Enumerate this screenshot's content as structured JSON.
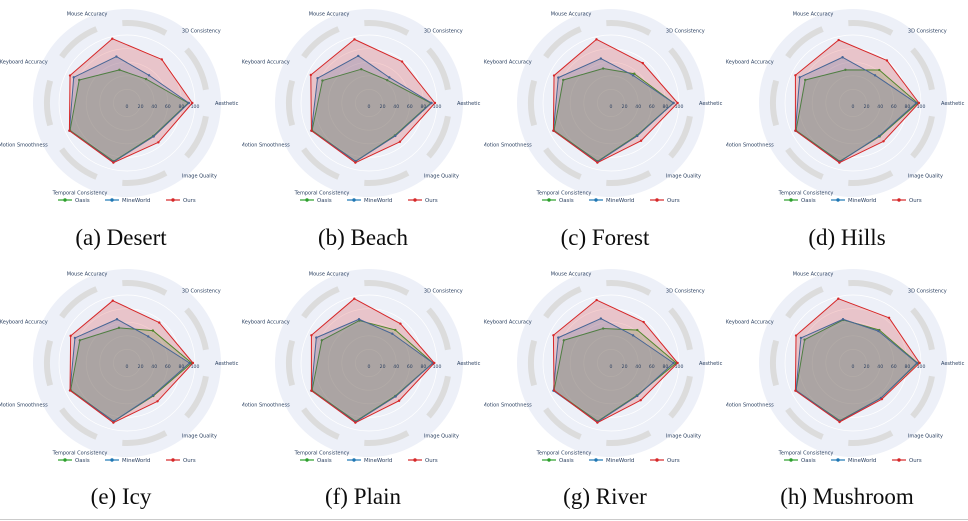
{
  "palette": {
    "background_circle": "#edf0f8",
    "grid_circle": "#ffffff",
    "ring": "#dcdcdc",
    "label_color": "#2a3f5f",
    "oasis_green": "#2ca02c",
    "mineworld_blue": "#1f77b4",
    "ours_red": "#d62728"
  },
  "legend": {
    "items": [
      {
        "label": "Oasis",
        "color": "#2ca02c"
      },
      {
        "label": "MineWorld",
        "color": "#1f77b4"
      },
      {
        "label": "Ours",
        "color": "#d62728"
      }
    ],
    "position": "bottom"
  },
  "chart_data": [
    {
      "type": "radar",
      "caption": "(a) Desert",
      "scene": "Desert",
      "categories": [
        "Mouse Accuracy",
        "3D Consistency",
        "Aesthetic",
        "Image Quality",
        "Temporal Consistency",
        "Motion Smoothness",
        "Keyboard Accuracy"
      ],
      "ticks": [
        0,
        20,
        40,
        60,
        80,
        100
      ],
      "rlim": [
        0,
        100
      ],
      "grid": true,
      "legend_position": "bottom",
      "series": [
        {
          "name": "Oasis",
          "color": "#2ca02c",
          "values": [
            50,
            45,
            90,
            62,
            88,
            93,
            78
          ]
        },
        {
          "name": "MineWorld",
          "color": "#1f77b4",
          "values": [
            70,
            52,
            91,
            63,
            89,
            94,
            87
          ]
        },
        {
          "name": "Ours",
          "color": "#d62728",
          "values": [
            97,
            82,
            96,
            74,
            90,
            94,
            93
          ]
        }
      ]
    },
    {
      "type": "radar",
      "caption": "(b) Beach",
      "scene": "Beach",
      "categories": [
        "Mouse Accuracy",
        "3D Consistency",
        "Aesthetic",
        "Image Quality",
        "Temporal Consistency",
        "Motion Smoothness",
        "Keyboard Accuracy"
      ],
      "ticks": [
        0,
        20,
        40,
        60,
        80,
        100
      ],
      "rlim": [
        0,
        100
      ],
      "grid": true,
      "legend_position": "bottom",
      "series": [
        {
          "name": "Oasis",
          "color": "#2ca02c",
          "values": [
            51,
            43,
            91,
            61,
            88,
            93,
            76
          ]
        },
        {
          "name": "MineWorld",
          "color": "#1f77b4",
          "values": [
            71,
            48,
            92,
            62,
            88,
            94,
            84
          ]
        },
        {
          "name": "Ours",
          "color": "#d62728",
          "values": [
            96,
            78,
            97,
            73,
            90,
            94,
            95
          ]
        }
      ]
    },
    {
      "type": "radar",
      "caption": "(c) Forest",
      "scene": "Forest",
      "categories": [
        "Mouse Accuracy",
        "3D Consistency",
        "Aesthetic",
        "Image Quality",
        "Temporal Consistency",
        "Motion Smoothness",
        "Keyboard Accuracy"
      ],
      "ticks": [
        0,
        20,
        40,
        60,
        80,
        100
      ],
      "rlim": [
        0,
        100
      ],
      "grid": true,
      "legend_position": "bottom",
      "series": [
        {
          "name": "Oasis",
          "color": "#2ca02c",
          "values": [
            52,
            55,
            92,
            61,
            88,
            93,
            78
          ]
        },
        {
          "name": "MineWorld",
          "color": "#1f77b4",
          "values": [
            67,
            52,
            92,
            62,
            89,
            94,
            86
          ]
        },
        {
          "name": "Ours",
          "color": "#d62728",
          "values": [
            96,
            75,
            98,
            71,
            90,
            94,
            93
          ]
        }
      ]
    },
    {
      "type": "radar",
      "caption": "(d) Hills",
      "scene": "Hills",
      "categories": [
        "Mouse Accuracy",
        "3D Consistency",
        "Aesthetic",
        "Image Quality",
        "Temporal Consistency",
        "Motion Smoothness",
        "Keyboard Accuracy"
      ],
      "ticks": [
        0,
        20,
        40,
        60,
        80,
        100
      ],
      "rlim": [
        0,
        100
      ],
      "grid": true,
      "legend_position": "bottom",
      "series": [
        {
          "name": "Oasis",
          "color": "#2ca02c",
          "values": [
            50,
            62,
            95,
            63,
            88,
            93,
            78
          ]
        },
        {
          "name": "MineWorld",
          "color": "#1f77b4",
          "values": [
            69,
            52,
            93,
            62,
            89,
            94,
            87
          ]
        },
        {
          "name": "Ours",
          "color": "#d62728",
          "values": [
            95,
            80,
            97,
            72,
            90,
            94,
            94
          ]
        }
      ]
    },
    {
      "type": "radar",
      "caption": "(e) Icy",
      "scene": "Icy",
      "categories": [
        "Mouse Accuracy",
        "3D Consistency",
        "Aesthetic",
        "Image Quality",
        "Temporal Consistency",
        "Motion Smoothness",
        "Keyboard Accuracy"
      ],
      "ticks": [
        0,
        20,
        40,
        60,
        80,
        100
      ],
      "rlim": [
        0,
        100
      ],
      "grid": true,
      "legend_position": "bottom",
      "series": [
        {
          "name": "Oasis",
          "color": "#2ca02c",
          "values": [
            53,
            61,
            95,
            62,
            88,
            92,
            77
          ]
        },
        {
          "name": "MineWorld",
          "color": "#1f77b4",
          "values": [
            66,
            50,
            92,
            61,
            88,
            93,
            85
          ]
        },
        {
          "name": "Ours",
          "color": "#d62728",
          "values": [
            94,
            76,
            97,
            72,
            90,
            93,
            92
          ]
        }
      ]
    },
    {
      "type": "radar",
      "caption": "(f) Plain",
      "scene": "Plain",
      "categories": [
        "Mouse Accuracy",
        "3D Consistency",
        "Aesthetic",
        "Image Quality",
        "Temporal Consistency",
        "Motion Smoothness",
        "Keyboard Accuracy"
      ],
      "ticks": [
        0,
        20,
        40,
        60,
        80,
        100
      ],
      "rlim": [
        0,
        100
      ],
      "grid": true,
      "legend_position": "bottom",
      "series": [
        {
          "name": "Oasis",
          "color": "#2ca02c",
          "values": [
            64,
            62,
            94,
            62,
            88,
            93,
            77
          ]
        },
        {
          "name": "MineWorld",
          "color": "#1f77b4",
          "values": [
            66,
            55,
            94,
            63,
            89,
            94,
            86
          ]
        },
        {
          "name": "Ours",
          "color": "#d62728",
          "values": [
            97,
            74,
            96,
            71,
            90,
            94,
            94
          ]
        }
      ]
    },
    {
      "type": "radar",
      "caption": "(g) River",
      "scene": "River",
      "categories": [
        "Mouse Accuracy",
        "3D Consistency",
        "Aesthetic",
        "Image Quality",
        "Temporal Consistency",
        "Motion Smoothness",
        "Keyboard Accuracy"
      ],
      "ticks": [
        0,
        20,
        40,
        60,
        80,
        100
      ],
      "rlim": [
        0,
        100
      ],
      "grid": true,
      "legend_position": "bottom",
      "series": [
        {
          "name": "Oasis",
          "color": "#2ca02c",
          "values": [
            52,
            62,
            96,
            61,
            88,
            93,
            77
          ]
        },
        {
          "name": "MineWorld",
          "color": "#1f77b4",
          "values": [
            67,
            52,
            92,
            62,
            89,
            94,
            86
          ]
        },
        {
          "name": "Ours",
          "color": "#d62728",
          "values": [
            95,
            77,
            98,
            70,
            90,
            93,
            94
          ]
        }
      ]
    },
    {
      "type": "radar",
      "caption": "(h) Mushroom",
      "scene": "Mushroom",
      "categories": [
        "Mouse Accuracy",
        "3D Consistency",
        "Aesthetic",
        "Image Quality",
        "Temporal Consistency",
        "Motion Smoothness",
        "Keyboard Accuracy"
      ],
      "ticks": [
        0,
        20,
        40,
        60,
        80,
        100
      ],
      "rlim": [
        0,
        100
      ],
      "grid": true,
      "legend_position": "bottom",
      "series": [
        {
          "name": "Oasis",
          "color": "#2ca02c",
          "values": [
            65,
            62,
            95,
            66,
            87,
            93,
            79
          ]
        },
        {
          "name": "MineWorld",
          "color": "#1f77b4",
          "values": [
            66,
            60,
            94,
            66,
            88,
            93,
            85
          ]
        },
        {
          "name": "Ours",
          "color": "#d62728",
          "values": [
            97,
            85,
            98,
            68,
            89,
            94,
            93
          ]
        }
      ]
    }
  ]
}
